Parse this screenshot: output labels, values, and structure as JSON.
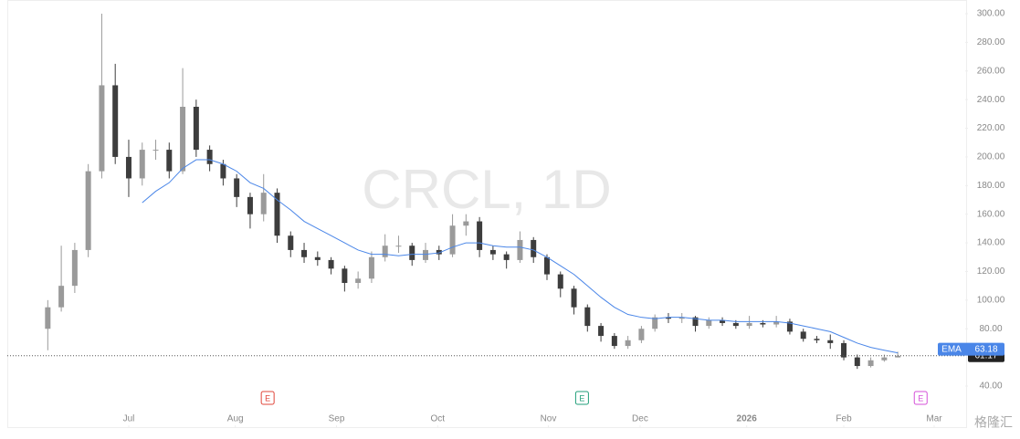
{
  "chart_data": {
    "type": "candlestick",
    "watermark": "CRCL, 1D",
    "logo": "格隆汇",
    "up_color": "#9a9a9a",
    "down_color": "#3d3d3d",
    "ema_color": "#4a86e8",
    "ema_name": "EMA",
    "open": [
      80,
      95,
      110,
      135,
      190,
      250,
      200,
      185,
      205,
      205,
      190,
      235,
      205,
      195,
      185,
      172,
      160,
      175,
      145,
      135,
      130,
      128,
      122,
      112,
      115,
      130,
      138,
      138,
      128,
      135,
      132,
      152,
      155,
      135,
      132,
      128,
      142,
      130,
      118,
      108,
      95,
      82,
      75,
      68,
      72,
      80,
      88,
      87,
      88,
      82,
      86,
      84,
      82,
      84,
      83,
      85,
      78,
      73,
      72,
      70,
      60,
      54,
      58,
      60
    ],
    "high": [
      100,
      138,
      140,
      195,
      300,
      265,
      212,
      210,
      212,
      210,
      262,
      240,
      208,
      198,
      188,
      175,
      188,
      178,
      148,
      140,
      134,
      130,
      124,
      120,
      134,
      146,
      145,
      140,
      140,
      138,
      160,
      160,
      158,
      138,
      134,
      148,
      144,
      132,
      120,
      110,
      97,
      84,
      77,
      75,
      82,
      90,
      91,
      91,
      89,
      88,
      88,
      86,
      89,
      86,
      89,
      87,
      80,
      75,
      76,
      72,
      62,
      60,
      62,
      64
    ],
    "low": [
      65,
      92,
      105,
      130,
      185,
      195,
      172,
      180,
      198,
      185,
      188,
      200,
      190,
      180,
      165,
      150,
      155,
      140,
      130,
      126,
      124,
      118,
      106,
      108,
      112,
      127,
      133,
      124,
      126,
      128,
      130,
      145,
      130,
      128,
      122,
      126,
      126,
      114,
      102,
      90,
      78,
      71,
      66,
      66,
      70,
      78,
      84,
      84,
      78,
      80,
      82,
      80,
      80,
      81,
      81,
      76,
      71,
      70,
      66,
      58,
      52,
      53,
      57,
      60
    ],
    "close": [
      95,
      110,
      135,
      190,
      250,
      200,
      185,
      205,
      205,
      190,
      235,
      205,
      195,
      185,
      172,
      160,
      175,
      145,
      135,
      130,
      128,
      122,
      112,
      115,
      130,
      138,
      138,
      128,
      135,
      132,
      152,
      155,
      135,
      132,
      128,
      142,
      130,
      118,
      108,
      95,
      82,
      75,
      68,
      72,
      80,
      88,
      87,
      88,
      82,
      86,
      84,
      82,
      84,
      83,
      85,
      78,
      73,
      72,
      70,
      60,
      54,
      58,
      60,
      61.17
    ],
    "ema": [
      null,
      null,
      null,
      null,
      null,
      null,
      null,
      168,
      176,
      182,
      192,
      198,
      198,
      195,
      190,
      182,
      178,
      170,
      163,
      155,
      150,
      145,
      140,
      135,
      132,
      132,
      131,
      132,
      132,
      133,
      137,
      140,
      140,
      138,
      137,
      137,
      135,
      130,
      124,
      118,
      110,
      102,
      95,
      90,
      88,
      87,
      88,
      88,
      87,
      86,
      86,
      85,
      85,
      85,
      85,
      84,
      82,
      80,
      78,
      74,
      70,
      67,
      65,
      63.18
    ],
    "xlim": [
      -3,
      68
    ],
    "xticks": [
      {
        "value": 6.0,
        "label": "Jul"
      },
      {
        "value": 13.9,
        "label": "Aug"
      },
      {
        "value": 21.4,
        "label": "Sep"
      },
      {
        "value": 28.9,
        "label": "Oct"
      },
      {
        "value": 37.1,
        "label": "Nov"
      },
      {
        "value": 43.9,
        "label": "Dec"
      },
      {
        "value": 51.8,
        "label": "2026"
      },
      {
        "value": 59.0,
        "label": "Feb"
      },
      {
        "value": 65.7,
        "label": "Mar"
      }
    ],
    "ylim": [
      40,
      300
    ],
    "yticks": [
      {
        "value": 40,
        "label": "40.00"
      },
      {
        "value": 80,
        "label": "80.00"
      },
      {
        "value": 100,
        "label": "100.00"
      },
      {
        "value": 120,
        "label": "120.00"
      },
      {
        "value": 140,
        "label": "140.00"
      },
      {
        "value": 160,
        "label": "160.00"
      },
      {
        "value": 180,
        "label": "180.00"
      },
      {
        "value": 200,
        "label": "200.00"
      },
      {
        "value": 220,
        "label": "220.00"
      },
      {
        "value": 240,
        "label": "240.00"
      },
      {
        "value": 260,
        "label": "260.00"
      },
      {
        "value": 280,
        "label": "280.00"
      },
      {
        "value": 300,
        "label": "300.00"
      }
    ],
    "events": [
      {
        "x": 16.3,
        "label": "E",
        "color": "#e0453a"
      },
      {
        "x": 39.6,
        "label": "E",
        "color": "#1f9e78"
      },
      {
        "x": 64.7,
        "label": "E",
        "color": "#d54fd8"
      }
    ]
  }
}
